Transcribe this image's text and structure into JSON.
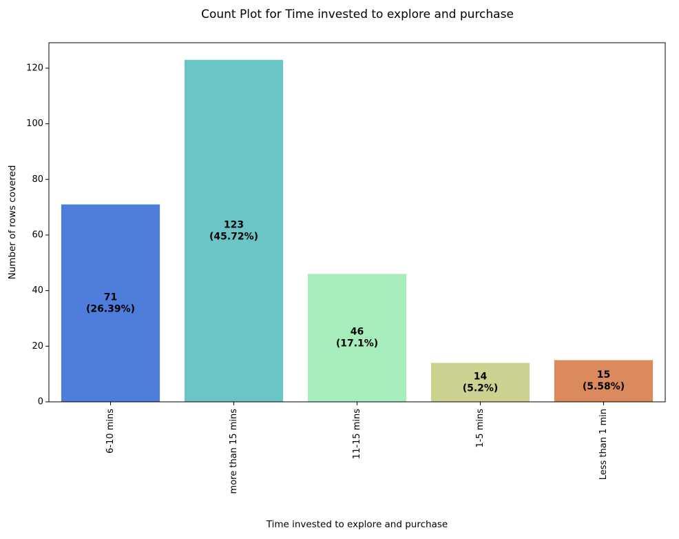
{
  "chart_data": {
    "type": "bar",
    "title": "Count Plot for Time invested to explore and purchase",
    "xlabel": "Time invested to explore and purchase",
    "ylabel": "Number of rows covered",
    "categories": [
      "6-10 mins",
      "more than 15 mins",
      "11-15 mins",
      "1-5 mins",
      "Less than 1 min"
    ],
    "values": [
      71,
      123,
      46,
      14,
      15
    ],
    "data_labels": [
      [
        "71",
        "(26.39%)"
      ],
      [
        "123",
        "(45.72%)"
      ],
      [
        "46",
        "(17.1%)"
      ],
      [
        "14",
        "(5.2%)"
      ],
      [
        "15",
        "(5.58%)"
      ]
    ],
    "colors": [
      "#4e7ddb",
      "#6bc4c6",
      "#a6edbb",
      "#cdd290",
      "#db8a5d"
    ],
    "y_ticks": [
      0,
      20,
      40,
      60,
      80,
      100,
      120
    ],
    "ylim": [
      0,
      129.15
    ],
    "grid": false,
    "legend": false
  }
}
